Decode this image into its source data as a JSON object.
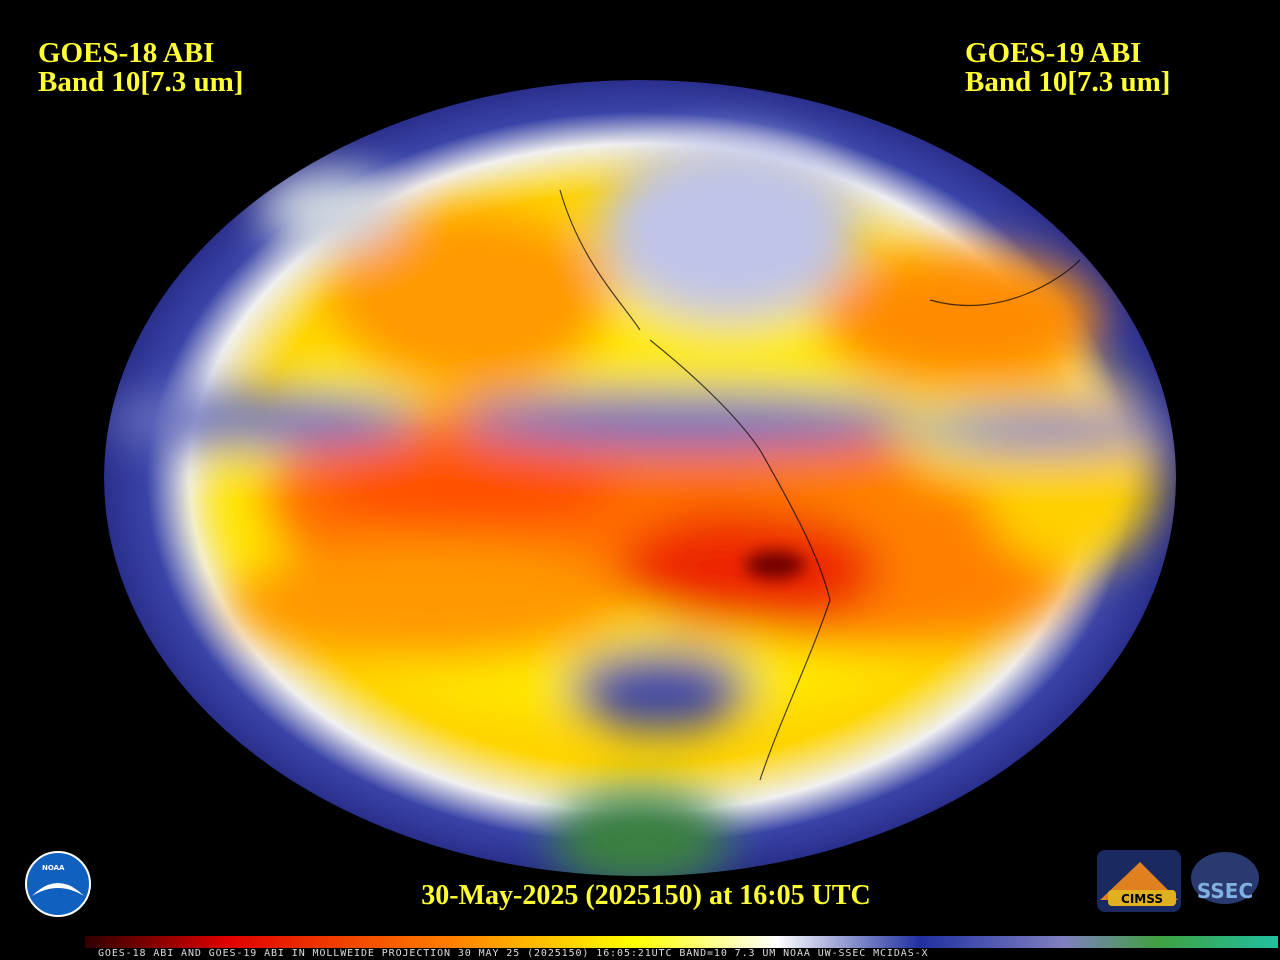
{
  "left_title": {
    "line1": "GOES-18 ABI",
    "line2": "Band 10[7.3 um]"
  },
  "right_title": {
    "line1": "GOES-19 ABI",
    "line2": "Band 10[7.3 um]"
  },
  "timestamp": "30-May-2025 (2025150) at 16:05 UTC",
  "footer": "GOES-18 ABI AND GOES-19 ABI IN MOLLWEIDE PROJECTION 30 MAY 25 (2025150) 16:05:21UTC BAND=10 7.3 UM NOAA UW-SSEC MCIDAS-X",
  "logos": {
    "noaa": "NOAA",
    "cimss": "CIMSS",
    "ssec": "SSEC"
  }
}
